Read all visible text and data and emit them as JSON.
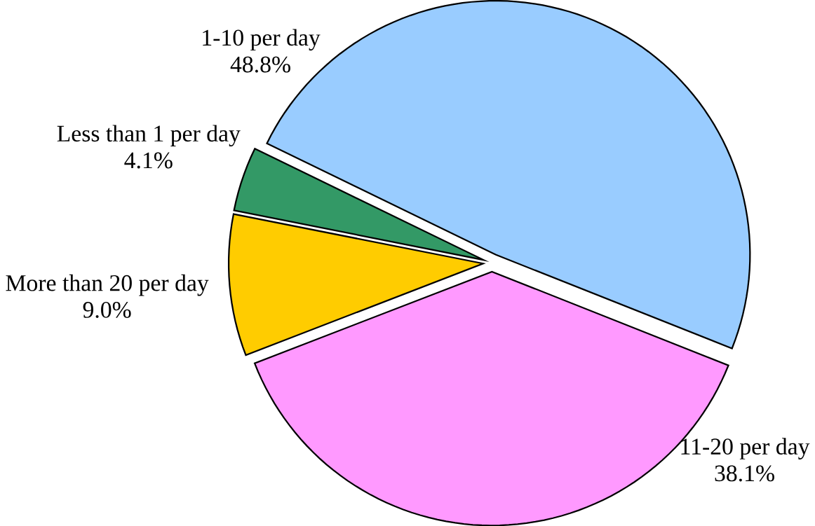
{
  "chart_data": {
    "type": "pie",
    "categories": [
      "1-10 per day",
      "11-20 per day",
      "More than 20 per day",
      "Less than 1 per day"
    ],
    "values": [
      48.8,
      38.1,
      9.0,
      4.1
    ],
    "value_labels": [
      "48.8%",
      "38.1%",
      "9.0%",
      "4.1%"
    ],
    "colors": [
      "#99ccff",
      "#ff99ff",
      "#ffcc00",
      "#339966"
    ]
  }
}
